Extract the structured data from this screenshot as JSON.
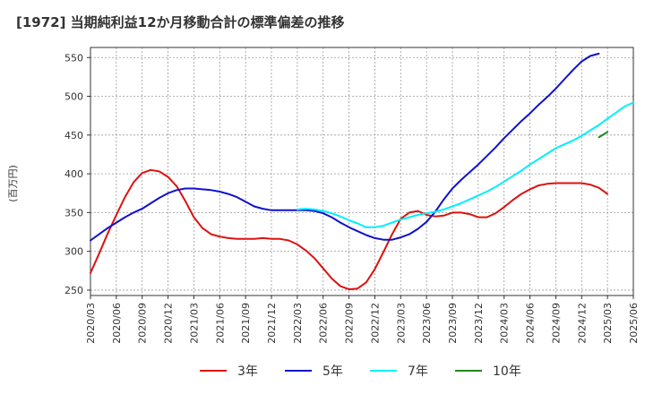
{
  "chart_data": {
    "type": "line",
    "title": "[1972]  当期純利益12か月移動合計の標準偏差の推移",
    "ylabel": "(百万円)",
    "xlabel": "",
    "ylim": [
      243,
      563
    ],
    "yticks": [
      250,
      300,
      350,
      400,
      450,
      500,
      550
    ],
    "x_ticks": [
      "2020/03",
      "2020/06",
      "2020/09",
      "2020/12",
      "2021/03",
      "2021/06",
      "2021/09",
      "2021/12",
      "2022/03",
      "2022/06",
      "2022/09",
      "2022/12",
      "2023/03",
      "2023/06",
      "2023/09",
      "2023/12",
      "2024/03",
      "2024/06",
      "2024/09",
      "2024/12",
      "2025/03",
      "2025/06"
    ],
    "grid": true,
    "legend_position": "bottom",
    "series": [
      {
        "name": "3年",
        "color": "#dd1111",
        "start_month": 0,
        "values": [
          272,
          297,
          323,
          347,
          370,
          389,
          401,
          405,
          403,
          396,
          384,
          365,
          344,
          330,
          322,
          319,
          317,
          316,
          316,
          316,
          317,
          316,
          316,
          314,
          309,
          301,
          291,
          278,
          265,
          255,
          251,
          252,
          260,
          277,
          299,
          322,
          342,
          350,
          352,
          347,
          345,
          346,
          350,
          350,
          348,
          344,
          344,
          349,
          357,
          366,
          374,
          380,
          385,
          387,
          388,
          388,
          388,
          388,
          386,
          382,
          374
        ]
      },
      {
        "name": "5年",
        "color": "#1111cc",
        "start_month": 0,
        "values": [
          314,
          322,
          330,
          337,
          344,
          350,
          355,
          362,
          369,
          375,
          379,
          381,
          381,
          380,
          379,
          377,
          374,
          370,
          364,
          358,
          355,
          353,
          353,
          353,
          353,
          353,
          352,
          349,
          344,
          337,
          331,
          326,
          321,
          317,
          315,
          315,
          318,
          322,
          329,
          338,
          351,
          367,
          381,
          392,
          402,
          412,
          423,
          434,
          446,
          457,
          468,
          478,
          489,
          499,
          510,
          522,
          534,
          545,
          552,
          555
        ]
      },
      {
        "name": "7年",
        "color": "#00eeff",
        "start_month": 24,
        "values": [
          354,
          355,
          354,
          352,
          349,
          345,
          340,
          336,
          331,
          331,
          333,
          337,
          341,
          344,
          347,
          349,
          351,
          354,
          358,
          362,
          367,
          372,
          377,
          383,
          390,
          397,
          404,
          412,
          419,
          426,
          433,
          438,
          443,
          449,
          456,
          463,
          471,
          479,
          487,
          492
        ]
      },
      {
        "name": "10年",
        "color": "#228822",
        "start_month": 59,
        "values": [
          447,
          454
        ]
      }
    ]
  }
}
